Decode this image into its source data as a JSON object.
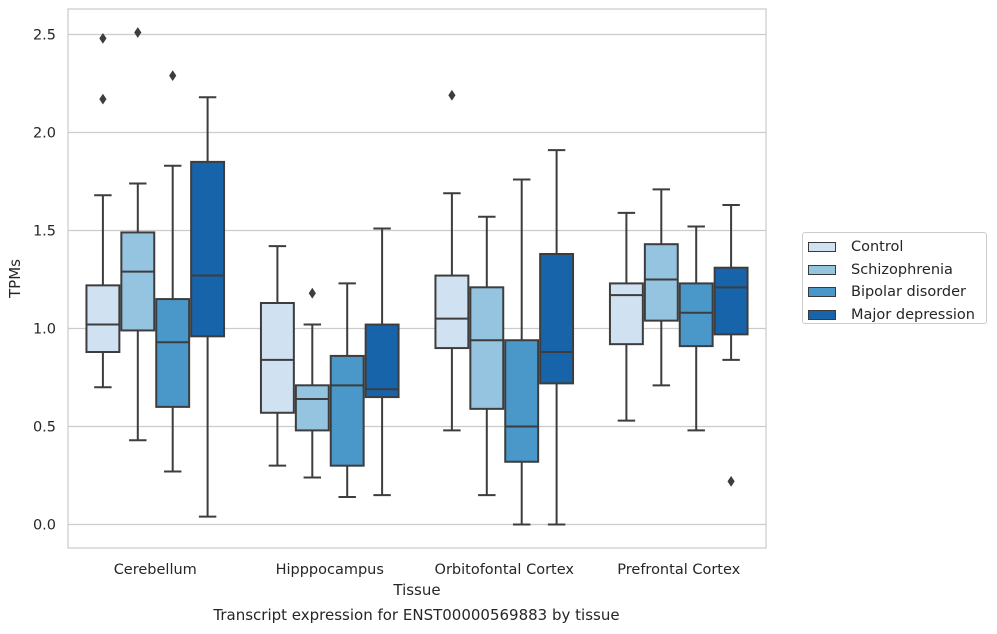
{
  "caption": "Transcript expression for ENST00000569883 by tissue",
  "chart_data": {
    "type": "boxplot",
    "title": "",
    "xlabel": "Tissue",
    "ylabel": "TPMs",
    "ylim": [
      -0.12,
      2.63
    ],
    "yticks": [
      0.0,
      0.5,
      1.0,
      1.5,
      2.0,
      2.5
    ],
    "ytick_labels": [
      "0.0",
      "0.5",
      "1.0",
      "1.5",
      "2.0",
      "2.5"
    ],
    "grid": "horizontal",
    "legend_position": "right",
    "categories": [
      "Cerebellum",
      "Hipppocampus",
      "Orbitofontal Cortex",
      "Prefrontal Cortex"
    ],
    "series": [
      {
        "name": "Control",
        "color": "#d0e1f2",
        "boxes": [
          {
            "whislo": 0.7,
            "q1": 0.88,
            "med": 1.02,
            "q3": 1.22,
            "whishi": 1.68,
            "fliers": [
              2.48,
              2.17
            ]
          },
          {
            "whislo": 0.3,
            "q1": 0.57,
            "med": 0.84,
            "q3": 1.13,
            "whishi": 1.42,
            "fliers": []
          },
          {
            "whislo": 0.48,
            "q1": 0.9,
            "med": 1.05,
            "q3": 1.27,
            "whishi": 1.69,
            "fliers": [
              2.19
            ]
          },
          {
            "whislo": 0.53,
            "q1": 0.92,
            "med": 1.17,
            "q3": 1.23,
            "whishi": 1.59,
            "fliers": []
          }
        ]
      },
      {
        "name": "Schizophrenia",
        "color": "#94c4df",
        "boxes": [
          {
            "whislo": 0.43,
            "q1": 0.99,
            "med": 1.29,
            "q3": 1.49,
            "whishi": 1.74,
            "fliers": [
              2.51
            ]
          },
          {
            "whislo": 0.24,
            "q1": 0.48,
            "med": 0.64,
            "q3": 0.71,
            "whishi": 1.02,
            "fliers": [
              1.18
            ]
          },
          {
            "whislo": 0.15,
            "q1": 0.59,
            "med": 0.94,
            "q3": 1.21,
            "whishi": 1.57,
            "fliers": []
          },
          {
            "whislo": 0.71,
            "q1": 1.04,
            "med": 1.25,
            "q3": 1.43,
            "whishi": 1.71,
            "fliers": []
          }
        ]
      },
      {
        "name": "Bipolar disorder",
        "color": "#4a98c9",
        "boxes": [
          {
            "whislo": 0.27,
            "q1": 0.6,
            "med": 0.93,
            "q3": 1.15,
            "whishi": 1.83,
            "fliers": [
              2.29
            ]
          },
          {
            "whislo": 0.14,
            "q1": 0.3,
            "med": 0.71,
            "q3": 0.86,
            "whishi": 1.23,
            "fliers": []
          },
          {
            "whislo": 0.0,
            "q1": 0.32,
            "med": 0.5,
            "q3": 0.94,
            "whishi": 1.76,
            "fliers": []
          },
          {
            "whislo": 0.48,
            "q1": 0.91,
            "med": 1.08,
            "q3": 1.23,
            "whishi": 1.52,
            "fliers": []
          }
        ]
      },
      {
        "name": "Major depression",
        "color": "#1764ab",
        "boxes": [
          {
            "whislo": 0.04,
            "q1": 0.96,
            "med": 1.27,
            "q3": 1.85,
            "whishi": 2.18,
            "fliers": []
          },
          {
            "whislo": 0.15,
            "q1": 0.65,
            "med": 0.69,
            "q3": 1.02,
            "whishi": 1.51,
            "fliers": []
          },
          {
            "whislo": 0.0,
            "q1": 0.72,
            "med": 0.88,
            "q3": 1.38,
            "whishi": 1.91,
            "fliers": []
          },
          {
            "whislo": 0.84,
            "q1": 0.97,
            "med": 1.21,
            "q3": 1.31,
            "whishi": 1.63,
            "fliers": [
              0.22
            ]
          }
        ]
      }
    ]
  }
}
